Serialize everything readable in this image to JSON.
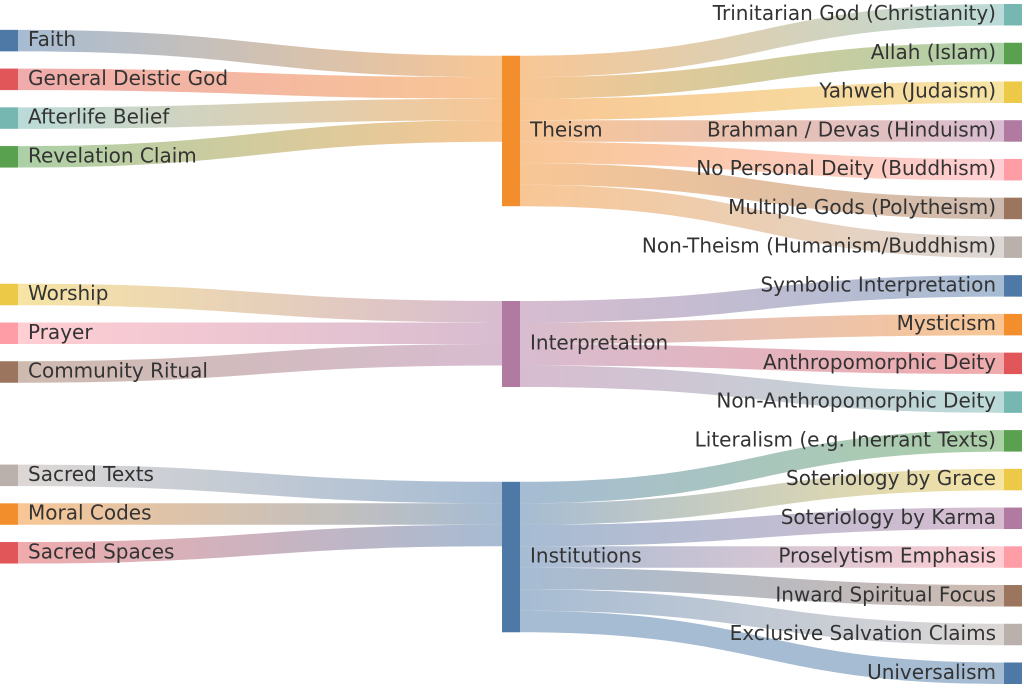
{
  "chart_data": {
    "type": "sankey",
    "nodes": [
      {
        "name": "Faith",
        "color": "#4e79a7"
      },
      {
        "name": "General Deistic God",
        "color": "#e15759"
      },
      {
        "name": "Afterlife Belief",
        "color": "#76b7b2"
      },
      {
        "name": "Revelation Claim",
        "color": "#59a14f"
      },
      {
        "name": "Worship",
        "color": "#edc948"
      },
      {
        "name": "Prayer",
        "color": "#ff9da7"
      },
      {
        "name": "Community Ritual",
        "color": "#9c755f"
      },
      {
        "name": "Sacred Texts",
        "color": "#bab0ac"
      },
      {
        "name": "Moral Codes",
        "color": "#f28e2b"
      },
      {
        "name": "Sacred Spaces",
        "color": "#e15759"
      },
      {
        "name": "Theism",
        "color": "#f28e2b"
      },
      {
        "name": "Interpretation",
        "color": "#b07aa1"
      },
      {
        "name": "Institutions",
        "color": "#4e79a7"
      },
      {
        "name": "Trinitarian God (Christianity)",
        "color": "#76b7b2"
      },
      {
        "name": "Allah (Islam)",
        "color": "#59a14f"
      },
      {
        "name": "Yahweh (Judaism)",
        "color": "#edc948"
      },
      {
        "name": "Brahman / Devas (Hinduism)",
        "color": "#b07aa1"
      },
      {
        "name": "No Personal Deity (Buddhism)",
        "color": "#ff9da7"
      },
      {
        "name": "Multiple Gods (Polytheism)",
        "color": "#9c755f"
      },
      {
        "name": "Non-Theism (Humanism/Buddhism)",
        "color": "#bab0ac"
      },
      {
        "name": "Symbolic Interpretation",
        "color": "#4e79a7"
      },
      {
        "name": "Mysticism",
        "color": "#f28e2b"
      },
      {
        "name": "Anthropomorphic Deity",
        "color": "#e15759"
      },
      {
        "name": "Non-Anthropomorphic Deity",
        "color": "#76b7b2"
      },
      {
        "name": "Literalism (e.g. Inerrant Texts)",
        "color": "#59a14f"
      },
      {
        "name": "Soteriology by Grace",
        "color": "#edc948"
      },
      {
        "name": "Soteriology by Karma",
        "color": "#b07aa1"
      },
      {
        "name": "Proselytism Emphasis",
        "color": "#ff9da7"
      },
      {
        "name": "Inward Spiritual Focus",
        "color": "#9c755f"
      },
      {
        "name": "Exclusive Salvation Claims",
        "color": "#bab0ac"
      },
      {
        "name": "Universalism",
        "color": "#4e79a7"
      }
    ],
    "links": [
      {
        "source": 0,
        "target": 10,
        "value": 1
      },
      {
        "source": 1,
        "target": 10,
        "value": 1
      },
      {
        "source": 2,
        "target": 10,
        "value": 1
      },
      {
        "source": 3,
        "target": 10,
        "value": 1
      },
      {
        "source": 4,
        "target": 11,
        "value": 1
      },
      {
        "source": 5,
        "target": 11,
        "value": 1
      },
      {
        "source": 6,
        "target": 11,
        "value": 1
      },
      {
        "source": 7,
        "target": 12,
        "value": 1
      },
      {
        "source": 8,
        "target": 12,
        "value": 1
      },
      {
        "source": 9,
        "target": 12,
        "value": 1
      },
      {
        "source": 10,
        "target": 13,
        "value": 1
      },
      {
        "source": 10,
        "target": 14,
        "value": 1
      },
      {
        "source": 10,
        "target": 15,
        "value": 1
      },
      {
        "source": 10,
        "target": 16,
        "value": 1
      },
      {
        "source": 10,
        "target": 17,
        "value": 1
      },
      {
        "source": 10,
        "target": 18,
        "value": 1
      },
      {
        "source": 10,
        "target": 19,
        "value": 1
      },
      {
        "source": 11,
        "target": 20,
        "value": 1
      },
      {
        "source": 11,
        "target": 21,
        "value": 1
      },
      {
        "source": 11,
        "target": 22,
        "value": 1
      },
      {
        "source": 11,
        "target": 23,
        "value": 1
      },
      {
        "source": 12,
        "target": 24,
        "value": 1
      },
      {
        "source": 12,
        "target": 25,
        "value": 1
      },
      {
        "source": 12,
        "target": 26,
        "value": 1
      },
      {
        "source": 12,
        "target": 27,
        "value": 1
      },
      {
        "source": 12,
        "target": 28,
        "value": 1
      },
      {
        "source": 12,
        "target": 29,
        "value": 1
      },
      {
        "source": 12,
        "target": 30,
        "value": 1
      }
    ]
  }
}
